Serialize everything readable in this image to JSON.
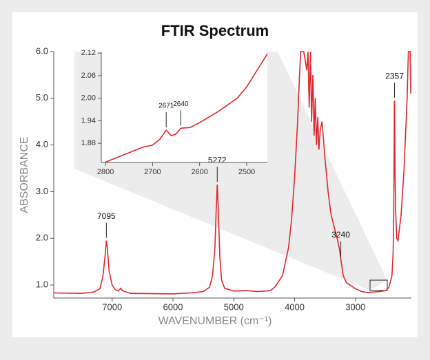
{
  "chart_data": [
    {
      "type": "line",
      "title": "FTIR Spectrum",
      "xlabel": "WAVENUMBER (cm⁻¹)",
      "ylabel": "ABSORBANCE",
      "xlim": [
        7960,
        2080
      ],
      "ylim": [
        0.72,
        6.0
      ],
      "xticks": [
        7000,
        6000,
        5000,
        4000,
        3000
      ],
      "yticks": [
        {
          "value": 1,
          "label": "1.0"
        },
        {
          "value": 2,
          "label": "2.0"
        },
        {
          "value": 3,
          "label": "3.0"
        },
        {
          "value": 4,
          "label": "4.0"
        },
        {
          "value": 5,
          "label": "5.0"
        },
        {
          "value": 6,
          "label": "6.0"
        }
      ],
      "series": [
        {
          "color": "#e0262c",
          "x": [
            7960,
            7500,
            7300,
            7200,
            7150,
            7110,
            7095,
            7080,
            7050,
            7000,
            6950,
            6900,
            6860,
            6830,
            6700,
            6000,
            5700,
            5500,
            5400,
            5350,
            5310,
            5290,
            5272,
            5255,
            5230,
            5200,
            5150,
            5000,
            4800,
            4600,
            4400,
            4330,
            4300,
            4200,
            4100,
            4050,
            4000,
            3950,
            3920,
            3900,
            3880,
            3850,
            3800,
            3780,
            3760,
            3740,
            3720,
            3700,
            3680,
            3660,
            3640,
            3620,
            3600,
            3580,
            3550,
            3500,
            3450,
            3400,
            3300,
            3260,
            3240,
            3200,
            3150,
            3000,
            2900,
            2800,
            2700,
            2600,
            2500,
            2450,
            2400,
            2380,
            2370,
            2360,
            2357,
            2350,
            2340,
            2320,
            2300,
            2250,
            2200,
            2150,
            2130,
            2100,
            2090,
            2080
          ],
          "values": [
            0.83,
            0.82,
            0.85,
            0.92,
            1.2,
            1.7,
            1.95,
            1.8,
            1.3,
            1.0,
            0.9,
            0.87,
            0.93,
            0.88,
            0.82,
            0.81,
            0.83,
            0.86,
            0.95,
            1.2,
            1.8,
            2.6,
            3.15,
            2.6,
            1.6,
            1.1,
            0.93,
            0.87,
            0.88,
            0.86,
            0.88,
            0.95,
            1.0,
            1.2,
            1.8,
            2.4,
            3.3,
            4.5,
            5.5,
            6.0,
            6.0,
            6.0,
            5.6,
            6.0,
            4.8,
            6.0,
            4.5,
            5.5,
            4.2,
            5.0,
            4.0,
            4.6,
            3.9,
            4.3,
            4.5,
            3.7,
            3.0,
            2.5,
            2.0,
            1.75,
            1.55,
            1.2,
            1.05,
            0.92,
            0.86,
            0.84,
            0.85,
            0.86,
            0.88,
            0.95,
            1.2,
            1.7,
            2.5,
            4.9,
            4.95,
            3.5,
            2.6,
            2.0,
            1.95,
            2.5,
            3.5,
            5.0,
            6.0,
            6.0,
            5.1,
            5.3
          ]
        }
      ],
      "annotations": [
        {
          "text": "7095",
          "x": 7095,
          "y": 1.95
        },
        {
          "text": "5272",
          "x": 5272,
          "y": 3.15
        },
        {
          "text": "3240",
          "x": 3240,
          "y": 1.55
        },
        {
          "text": "2357",
          "x": 2357,
          "y": 4.95
        }
      ]
    },
    {
      "type": "line",
      "xlim": [
        2809,
        2456
      ],
      "ylim": [
        1.829,
        2.124
      ],
      "xticks": [
        2800,
        2700,
        2600,
        2500
      ],
      "yticks": [
        1.88,
        1.94,
        {
          "value": 2,
          "label": "2.00"
        },
        2.06,
        2.12
      ],
      "series": [
        {
          "color": "#e0262c",
          "x": [
            2800,
            2760,
            2720,
            2700,
            2685,
            2671,
            2660,
            2650,
            2640,
            2620,
            2600,
            2560,
            2520,
            2500,
            2480,
            2460,
            2455
          ],
          "values": [
            1.83,
            1.85,
            1.87,
            1.875,
            1.89,
            1.915,
            1.9,
            1.905,
            1.92,
            1.922,
            1.935,
            1.965,
            2.0,
            2.03,
            2.07,
            2.11,
            2.12
          ]
        }
      ],
      "annotations": [
        {
          "text": "2671",
          "x": 2671,
          "y": 1.915
        },
        {
          "text": "2640",
          "x": 2640,
          "y": 1.92
        }
      ]
    }
  ]
}
